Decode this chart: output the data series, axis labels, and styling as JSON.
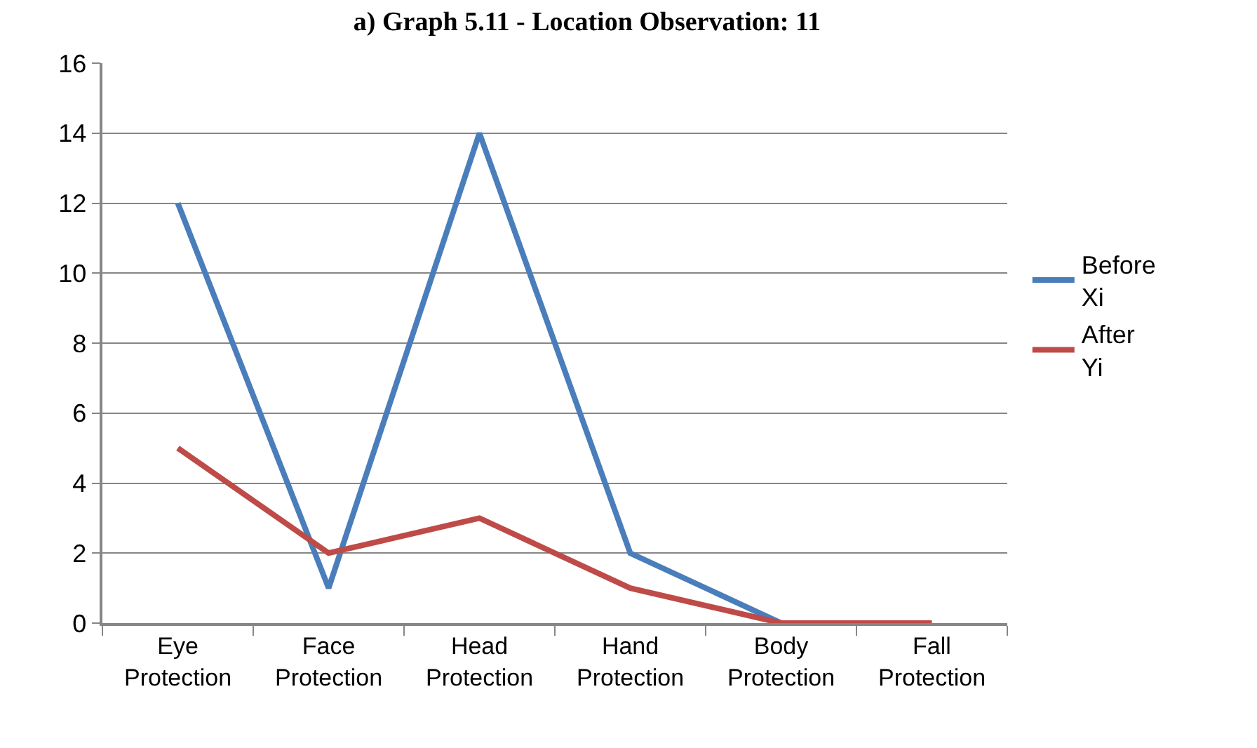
{
  "chart_data": {
    "type": "line",
    "title": "a) Graph 5.11 - Location Observation: 11",
    "categories": [
      "Eye Protection",
      "Face Protection",
      "Head Protection",
      "Hand Protection",
      "Body Protection",
      "Fall Protection"
    ],
    "series": [
      {
        "name": "Before Xi",
        "color": "#4a7ebb",
        "values": [
          12,
          1,
          14,
          2,
          0,
          null
        ]
      },
      {
        "name": "After Yi",
        "color": "#be4b48",
        "values": [
          5,
          2,
          3,
          1,
          0,
          0
        ]
      }
    ],
    "ylim": [
      0,
      16
    ],
    "yticks": [
      0,
      2,
      4,
      6,
      8,
      10,
      12,
      14,
      16
    ],
    "grid": "y",
    "legend": "right",
    "marker": "none",
    "line_style": "solid"
  }
}
